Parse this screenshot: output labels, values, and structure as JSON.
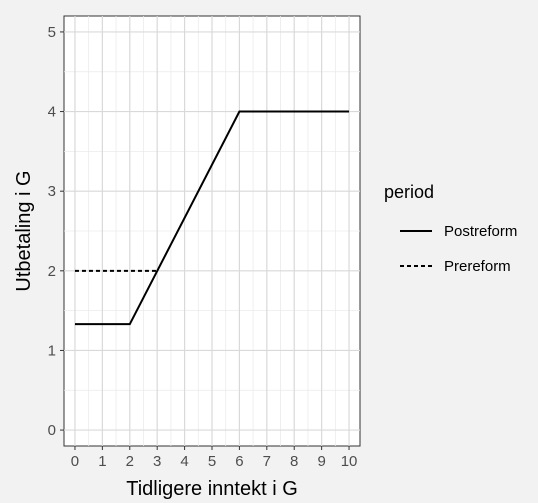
{
  "chart_data": {
    "type": "line",
    "title": "",
    "xlabel": "Tidligere inntekt i G",
    "ylabel": "Utbetaling i G",
    "xlim": [
      -0.4,
      10.4
    ],
    "ylim": [
      -0.2,
      5.2
    ],
    "x_ticks": [
      0,
      1,
      2,
      3,
      4,
      5,
      6,
      7,
      8,
      9,
      10
    ],
    "y_ticks": [
      0,
      1,
      2,
      3,
      4,
      5
    ],
    "grid": true,
    "legend": {
      "title": "period",
      "position": "right"
    },
    "series": [
      {
        "name": "Postreform",
        "line_style": "solid",
        "color": "#000000",
        "points": [
          [
            0,
            1.33
          ],
          [
            2,
            1.33
          ],
          [
            6,
            4
          ],
          [
            10,
            4
          ]
        ]
      },
      {
        "name": "Prereform",
        "line_style": "dashed",
        "color": "#000000",
        "points": [
          [
            0,
            2
          ],
          [
            3,
            2
          ]
        ]
      }
    ]
  }
}
